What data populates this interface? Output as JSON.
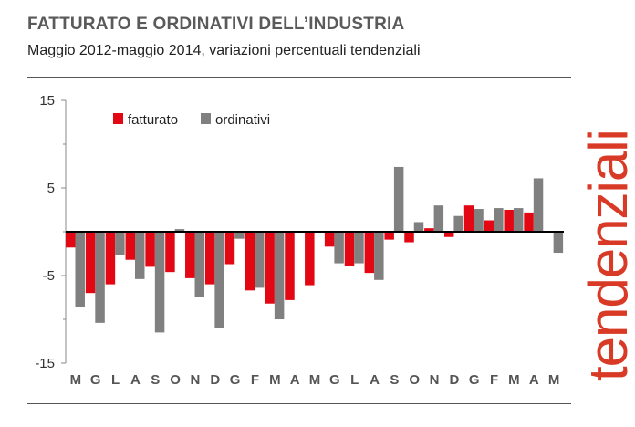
{
  "title": "FATTURATO E ORDINATIVI DELL’INDUSTRIA",
  "subtitle": "Maggio 2012-maggio 2014, variazioni percentuali tendenziali",
  "side_label": "tendenziali",
  "colors": {
    "fatturato": "#e30613",
    "ordinativi": "#808080",
    "side_label": "#d93a26"
  },
  "chart_data": {
    "type": "bar",
    "categories": [
      "M",
      "G",
      "L",
      "A",
      "S",
      "O",
      "N",
      "D",
      "G",
      "F",
      "M",
      "A",
      "M",
      "G",
      "L",
      "A",
      "S",
      "O",
      "N",
      "D",
      "G",
      "F",
      "M",
      "A",
      "M"
    ],
    "series": [
      {
        "name": "fatturato",
        "values": [
          -1.8,
          -7.0,
          -6.0,
          -3.2,
          -4.0,
          -4.6,
          -5.3,
          -6.0,
          -3.7,
          -6.7,
          -8.2,
          -7.8,
          -6.1,
          -1.7,
          -3.9,
          -4.7,
          -0.9,
          -1.2,
          0.4,
          -0.6,
          3.0,
          1.3,
          2.5,
          2.2,
          null
        ]
      },
      {
        "name": "ordinativi",
        "values": [
          -8.6,
          -10.4,
          -2.7,
          -5.4,
          -11.5,
          0.3,
          -7.5,
          -11.0,
          -0.8,
          -6.4,
          -10.0,
          null,
          null,
          -3.6,
          -3.6,
          -5.5,
          7.4,
          1.1,
          3.0,
          1.8,
          2.6,
          2.7,
          2.7,
          6.1,
          -2.4
        ]
      }
    ],
    "yticks": [
      15,
      5,
      -5,
      -15
    ],
    "ylim": [
      -15,
      15
    ],
    "legend": "top-left",
    "grid": false
  }
}
